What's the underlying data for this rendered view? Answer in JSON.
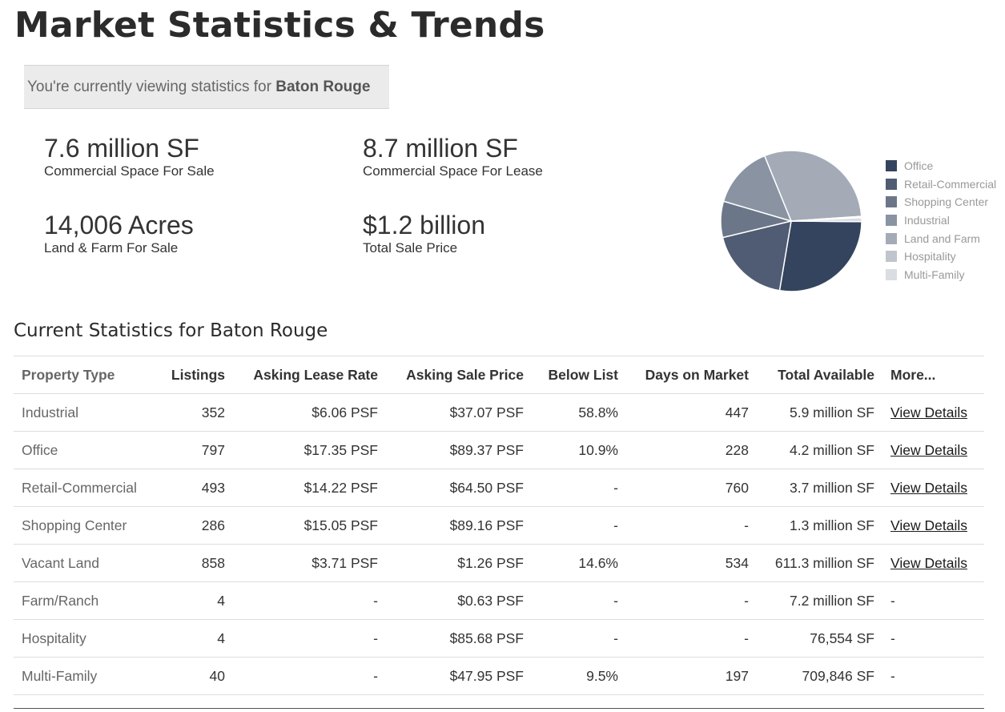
{
  "page": {
    "title": "Market Statistics & Trends",
    "context_prefix": "You're currently viewing statistics for",
    "context_location": "Baton Rouge"
  },
  "summary": [
    {
      "value": "7.6 million SF",
      "label": "Commercial Space For Sale"
    },
    {
      "value": "8.7 million SF",
      "label": "Commercial Space For Lease"
    },
    {
      "value": "14,006 Acres",
      "label": "Land & Farm For Sale"
    },
    {
      "value": "$1.2 billion",
      "label": "Total Sale Price"
    }
  ],
  "pie": {
    "legend": [
      {
        "name": "Office",
        "color": "#34445e"
      },
      {
        "name": "Retail-Commercial",
        "color": "#4f5c73"
      },
      {
        "name": "Shopping Center",
        "color": "#6b7789"
      },
      {
        "name": "Industrial",
        "color": "#8a93a2"
      },
      {
        "name": "Land and Farm",
        "color": "#a4abb7"
      },
      {
        "name": "Hospitality",
        "color": "#c0c5cd"
      },
      {
        "name": "Multi-Family",
        "color": "#dadde2"
      }
    ],
    "shares": [
      {
        "name": "Office",
        "value": 27.5
      },
      {
        "name": "Retail-Commercial",
        "value": 18.6
      },
      {
        "name": "Shopping Center",
        "value": 8.3
      },
      {
        "name": "Industrial",
        "value": 14.3
      },
      {
        "name": "Land and Farm",
        "value": 30.1
      },
      {
        "name": "Hospitality",
        "value": 0.3
      },
      {
        "name": "Multi-Family",
        "value": 0.9
      }
    ]
  },
  "stats": {
    "heading": "Current Statistics for Baton Rouge",
    "columns": [
      "Property Type",
      "Listings",
      "Asking Lease Rate",
      "Asking Sale Price",
      "Below List",
      "Days on Market",
      "Total Available",
      "More..."
    ],
    "rows": [
      [
        "Industrial",
        "352",
        "$6.06 PSF",
        "$37.07 PSF",
        "58.8%",
        "447",
        "5.9 million SF",
        "View Details"
      ],
      [
        "Office",
        "797",
        "$17.35 PSF",
        "$89.37 PSF",
        "10.9%",
        "228",
        "4.2 million SF",
        "View Details"
      ],
      [
        "Retail-Commercial",
        "493",
        "$14.22 PSF",
        "$64.50 PSF",
        "-",
        "760",
        "3.7 million SF",
        "View Details"
      ],
      [
        "Shopping Center",
        "286",
        "$15.05 PSF",
        "$89.16 PSF",
        "-",
        "-",
        "1.3 million SF",
        "View Details"
      ],
      [
        "Vacant Land",
        "858",
        "$3.71 PSF",
        "$1.26 PSF",
        "14.6%",
        "534",
        "611.3 million SF",
        "View Details"
      ],
      [
        "Farm/Ranch",
        "4",
        "-",
        "$0.63 PSF",
        "-",
        "-",
        "7.2 million SF",
        "-"
      ],
      [
        "Hospitality",
        "4",
        "-",
        "$85.68 PSF",
        "-",
        "-",
        "76,554 SF",
        "-"
      ],
      [
        "Multi-Family",
        "40",
        "-",
        "$47.95 PSF",
        "9.5%",
        "197",
        "709,846 SF",
        "-"
      ]
    ]
  }
}
